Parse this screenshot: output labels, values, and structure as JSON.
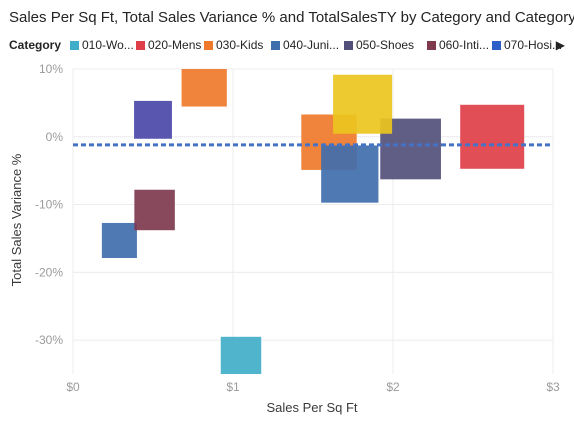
{
  "chart_data": {
    "type": "scatter",
    "title": "Sales Per Sq Ft, Total Sales Variance % and TotalSalesTY by Category and Category",
    "legend": {
      "title": "Category",
      "items": [
        {
          "label": "010-Wo...",
          "color": "#41AEC9"
        },
        {
          "label": "020-Mens",
          "color": "#DE3F48"
        },
        {
          "label": "030-Kids",
          "color": "#F07A2C"
        },
        {
          "label": "040-Juni...",
          "color": "#3F6EAD"
        },
        {
          "label": "050-Shoes",
          "color": "#52507A"
        },
        {
          "label": "060-Inti...",
          "color": "#7F3A4E"
        },
        {
          "label": "070-Hosi...",
          "color": "#2D5FC9"
        }
      ],
      "more_icon": "chevron-right-icon"
    },
    "xlabel": "Sales Per Sq Ft",
    "ylabel": "Total Sales Variance %",
    "xlim": [
      0,
      3
    ],
    "ylim": [
      -35,
      10
    ],
    "x_ticks": [
      {
        "value": 0,
        "label": "$0"
      },
      {
        "value": 1,
        "label": "$1"
      },
      {
        "value": 2,
        "label": "$2"
      },
      {
        "value": 3,
        "label": "$3"
      }
    ],
    "y_ticks": [
      {
        "value": 10,
        "label": "10%"
      },
      {
        "value": 0,
        "label": "0%"
      },
      {
        "value": -10,
        "label": "-10%"
      },
      {
        "value": -20,
        "label": "-20%"
      },
      {
        "value": -30,
        "label": "-30%"
      }
    ],
    "grid": true,
    "reference_line": {
      "y": -1.2,
      "color": "#4472C4",
      "style": "dashed"
    },
    "points": [
      {
        "category": "010-Wo...",
        "x": 1.05,
        "y": -32.5,
        "size": 0.4,
        "color": "#41AEC9"
      },
      {
        "category": "020-Mens",
        "x": 2.62,
        "y": 0.0,
        "size": 1.0,
        "color": "#DE3F48"
      },
      {
        "category": "030-Kids",
        "x": 0.82,
        "y": 7.8,
        "size": 0.5,
        "color": "#F07A2C"
      },
      {
        "category": "030-Kids",
        "x": 1.6,
        "y": -0.8,
        "size": 0.75,
        "color": "#F07A2C"
      },
      {
        "category": "040-Juni...",
        "x": 1.73,
        "y": -5.5,
        "size": 0.8,
        "color": "#3F6EAD"
      },
      {
        "category": "040-Juni...",
        "x": 0.29,
        "y": -15.3,
        "size": 0.3,
        "color": "#3F6EAD"
      },
      {
        "category": "050-Shoes",
        "x": 2.11,
        "y": -1.8,
        "size": 0.9,
        "color": "#52507A"
      },
      {
        "category": "050-Shoes",
        "x": 0.5,
        "y": 2.5,
        "size": 0.35,
        "color": "#4A48A8"
      },
      {
        "category": "060-Inti...",
        "x": 0.51,
        "y": -10.8,
        "size": 0.4,
        "color": "#7F3A4E"
      },
      {
        "category": "",
        "x": 1.81,
        "y": 4.8,
        "size": 0.85,
        "color": "#EBC51E"
      }
    ]
  }
}
